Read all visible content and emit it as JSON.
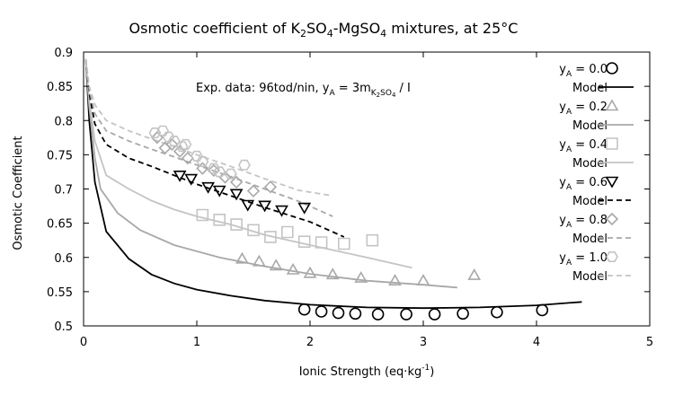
{
  "chart_data": {
    "type": "scatter",
    "title": {
      "pre": "Osmotic coefficient of K",
      "s1": "2",
      "m1": "SO",
      "s2": "4",
      "m2": "-MgSO",
      "s3": "4",
      "post": " mixtures, at 25°C"
    },
    "xlabel": {
      "pre": "Ionic Strength (eq·kg",
      "sup": "-1",
      "post": ")"
    },
    "ylabel": "Osmotic Coefficient",
    "xlim": [
      0,
      5
    ],
    "ylim": [
      0.5,
      0.9
    ],
    "xticks": [
      "0",
      "1",
      "2",
      "3",
      "4",
      "5"
    ],
    "yticks": [
      "0.5",
      "0.55",
      "0.6",
      "0.65",
      "0.7",
      "0.75",
      "0.8",
      "0.85",
      "0.9"
    ],
    "annotation": {
      "pre": "Exp. data: 96tod/nin, y",
      "sub1": "A",
      "mid": " = 3m",
      "sub2": "K",
      "sub2s": "2",
      "sub2b": "SO",
      "sub2bs": "4",
      "post": " / I"
    },
    "legend_placement": "top-right",
    "series": [
      {
        "name": "y",
        "name_sub": "A",
        "name_post": " = 0.0",
        "model_label": "Model",
        "color": "#000000",
        "marker": "circle",
        "line_dash": "",
        "points": [
          [
            1.95,
            0.524
          ],
          [
            2.1,
            0.521
          ],
          [
            2.25,
            0.519
          ],
          [
            2.4,
            0.518
          ],
          [
            2.6,
            0.517
          ],
          [
            2.85,
            0.517
          ],
          [
            3.1,
            0.517
          ],
          [
            3.35,
            0.518
          ],
          [
            3.65,
            0.52
          ],
          [
            4.05,
            0.523
          ]
        ],
        "model": [
          [
            0.02,
            0.89
          ],
          [
            0.05,
            0.8
          ],
          [
            0.1,
            0.71
          ],
          [
            0.2,
            0.638
          ],
          [
            0.4,
            0.598
          ],
          [
            0.6,
            0.575
          ],
          [
            0.8,
            0.562
          ],
          [
            1,
            0.553
          ],
          [
            1.3,
            0.544
          ],
          [
            1.6,
            0.537
          ],
          [
            2,
            0.531
          ],
          [
            2.5,
            0.527
          ],
          [
            3,
            0.526
          ],
          [
            3.5,
            0.527
          ],
          [
            4,
            0.53
          ],
          [
            4.4,
            0.535
          ]
        ]
      },
      {
        "name": "y",
        "name_sub": "A",
        "name_post": " = 0.2",
        "model_label": "Model",
        "color": "#a8a8a8",
        "marker": "triangle",
        "line_dash": "",
        "points": [
          [
            1.4,
            0.598
          ],
          [
            1.55,
            0.594
          ],
          [
            1.7,
            0.588
          ],
          [
            1.85,
            0.582
          ],
          [
            2,
            0.577
          ],
          [
            2.2,
            0.575
          ],
          [
            2.45,
            0.57
          ],
          [
            2.75,
            0.566
          ],
          [
            3,
            0.566
          ],
          [
            3.45,
            0.574
          ]
        ],
        "model": [
          [
            0.02,
            0.89
          ],
          [
            0.05,
            0.82
          ],
          [
            0.1,
            0.745
          ],
          [
            0.15,
            0.7
          ],
          [
            0.3,
            0.665
          ],
          [
            0.5,
            0.64
          ],
          [
            0.8,
            0.618
          ],
          [
            1.2,
            0.6
          ],
          [
            1.6,
            0.587
          ],
          [
            2,
            0.576
          ],
          [
            2.5,
            0.566
          ],
          [
            3,
            0.56
          ],
          [
            3.3,
            0.556
          ]
        ]
      },
      {
        "name": "y",
        "name_sub": "A",
        "name_post": " = 0.4",
        "model_label": "Model",
        "color": "#c4c4c4",
        "marker": "square",
        "line_dash": "",
        "points": [
          [
            1.05,
            0.662
          ],
          [
            1.2,
            0.655
          ],
          [
            1.35,
            0.648
          ],
          [
            1.5,
            0.64
          ],
          [
            1.65,
            0.63
          ],
          [
            1.8,
            0.637
          ],
          [
            1.95,
            0.623
          ],
          [
            2.1,
            0.622
          ],
          [
            2.3,
            0.62
          ],
          [
            2.55,
            0.625
          ]
        ],
        "model": [
          [
            0.02,
            0.89
          ],
          [
            0.05,
            0.83
          ],
          [
            0.1,
            0.77
          ],
          [
            0.2,
            0.72
          ],
          [
            0.4,
            0.7
          ],
          [
            0.6,
            0.683
          ],
          [
            0.8,
            0.67
          ],
          [
            1,
            0.66
          ],
          [
            1.3,
            0.648
          ],
          [
            1.6,
            0.633
          ],
          [
            2,
            0.618
          ],
          [
            2.5,
            0.6
          ],
          [
            2.9,
            0.585
          ]
        ]
      },
      {
        "name": "y",
        "name_sub": "A",
        "name_post": " = 0.6",
        "model_label": "Model",
        "color": "#000000",
        "marker": "triangle-down",
        "line_dash": "6,4",
        "points": [
          [
            0.85,
            0.72
          ],
          [
            0.95,
            0.715
          ],
          [
            1.1,
            0.703
          ],
          [
            1.2,
            0.698
          ],
          [
            1.35,
            0.693
          ],
          [
            1.45,
            0.677
          ],
          [
            1.6,
            0.676
          ],
          [
            1.75,
            0.669
          ],
          [
            1.95,
            0.673
          ]
        ],
        "model": [
          [
            0.02,
            0.89
          ],
          [
            0.05,
            0.84
          ],
          [
            0.1,
            0.795
          ],
          [
            0.2,
            0.765
          ],
          [
            0.4,
            0.745
          ],
          [
            0.6,
            0.733
          ],
          [
            0.8,
            0.72
          ],
          [
            1,
            0.707
          ],
          [
            1.3,
            0.69
          ],
          [
            1.6,
            0.673
          ],
          [
            2,
            0.652
          ],
          [
            2.3,
            0.63
          ]
        ]
      },
      {
        "name": "y",
        "name_sub": "A",
        "name_post": " = 0.8",
        "model_label": "Model",
        "color": "#a8a8a8",
        "marker": "diamond",
        "line_dash": "6,4",
        "points": [
          [
            0.65,
            0.775
          ],
          [
            0.72,
            0.76
          ],
          [
            0.78,
            0.765
          ],
          [
            0.85,
            0.755
          ],
          [
            0.92,
            0.745
          ],
          [
            1.05,
            0.73
          ],
          [
            1.15,
            0.727
          ],
          [
            1.25,
            0.717
          ],
          [
            1.35,
            0.71
          ],
          [
            1.5,
            0.697
          ],
          [
            1.65,
            0.703
          ]
        ],
        "model": [
          [
            0.02,
            0.89
          ],
          [
            0.05,
            0.845
          ],
          [
            0.1,
            0.81
          ],
          [
            0.2,
            0.785
          ],
          [
            0.4,
            0.77
          ],
          [
            0.6,
            0.758
          ],
          [
            0.8,
            0.747
          ],
          [
            1,
            0.735
          ],
          [
            1.3,
            0.718
          ],
          [
            1.6,
            0.7
          ],
          [
            1.9,
            0.682
          ],
          [
            2.2,
            0.66
          ]
        ]
      },
      {
        "name": "y",
        "name_sub": "A",
        "name_post": " = 1.0",
        "model_label": "Model",
        "color": "#c4c4c4",
        "marker": "hexagon",
        "line_dash": "6,4",
        "points": [
          [
            0.63,
            0.782
          ],
          [
            0.7,
            0.785
          ],
          [
            0.75,
            0.776
          ],
          [
            0.8,
            0.77
          ],
          [
            0.87,
            0.762
          ],
          [
            0.9,
            0.765
          ],
          [
            1,
            0.748
          ],
          [
            1.05,
            0.74
          ],
          [
            1.15,
            0.73
          ],
          [
            1.2,
            0.725
          ],
          [
            1.3,
            0.722
          ],
          [
            1.42,
            0.735
          ]
        ],
        "model": [
          [
            0.02,
            0.89
          ],
          [
            0.05,
            0.85
          ],
          [
            0.1,
            0.823
          ],
          [
            0.2,
            0.8
          ],
          [
            0.4,
            0.785
          ],
          [
            0.6,
            0.773
          ],
          [
            0.8,
            0.762
          ],
          [
            1,
            0.75
          ],
          [
            1.3,
            0.733
          ],
          [
            1.6,
            0.715
          ],
          [
            1.9,
            0.698
          ],
          [
            2.2,
            0.69
          ]
        ]
      }
    ]
  }
}
